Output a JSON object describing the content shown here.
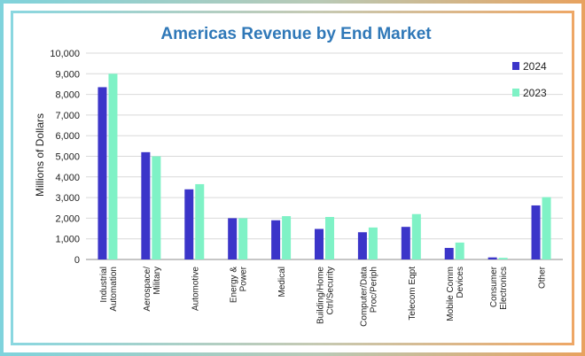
{
  "chart_data": {
    "type": "bar",
    "title": "Americas Revenue by End Market",
    "xlabel": "",
    "ylabel": "Millions of Dollars",
    "ylim": [
      0,
      10000
    ],
    "yticks": [
      "0",
      "1,000",
      "2,000",
      "3,000",
      "4,000",
      "5,000",
      "6,000",
      "7,000",
      "8,000",
      "9,000",
      "10,000"
    ],
    "grid": true,
    "legend_position": "top-right",
    "categories": [
      [
        "Industrial",
        "Automation"
      ],
      [
        "Aerospace/",
        "Military"
      ],
      [
        "Automotive"
      ],
      [
        "Energy &",
        "Power"
      ],
      [
        "Medical"
      ],
      [
        "Building/Home",
        "Ctrl/Security"
      ],
      [
        "Computer/Data",
        "Proc/Periph"
      ],
      [
        "Telecom Eqpt"
      ],
      [
        "Mobile Comm",
        "Devices"
      ],
      [
        "Consumer",
        "Electronics"
      ],
      [
        "Other"
      ]
    ],
    "series": [
      {
        "name": "2024",
        "color": "#3b35c9",
        "values": [
          8350,
          5200,
          3400,
          2000,
          1900,
          1480,
          1320,
          1580,
          560,
          100,
          2620
        ]
      },
      {
        "name": "2023",
        "color": "#7ff2c6",
        "values": [
          9000,
          5000,
          3650,
          2000,
          2100,
          2060,
          1550,
          2200,
          820,
          80,
          3020
        ]
      }
    ]
  }
}
